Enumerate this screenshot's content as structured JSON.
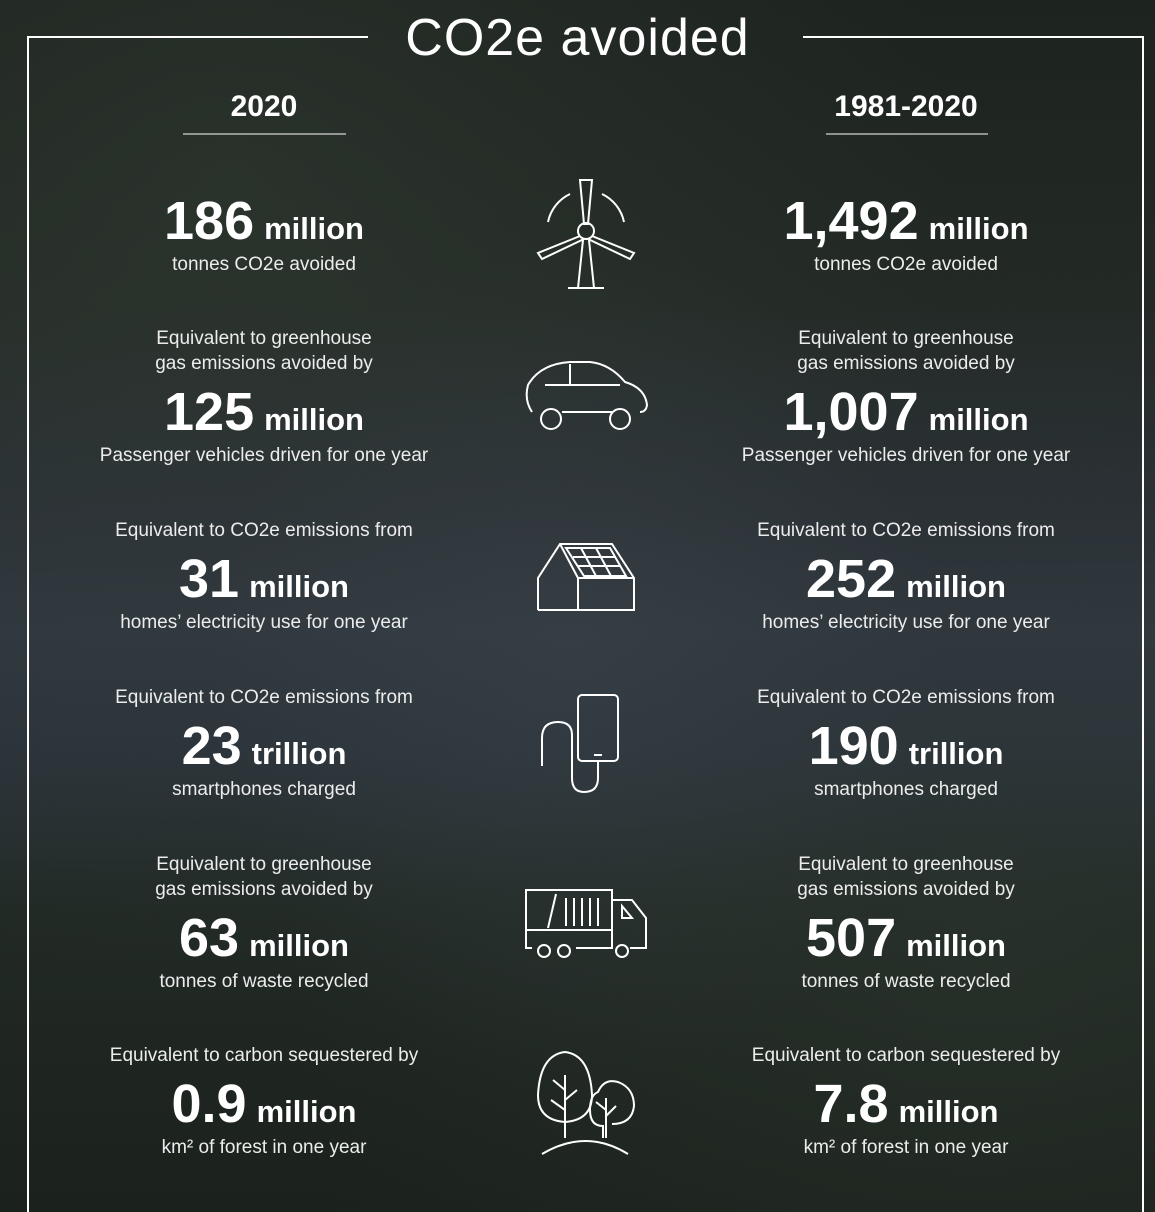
{
  "title": "CO2e avoided",
  "columns": [
    {
      "header": "2020",
      "rows": [
        {
          "pre": [],
          "number": "186",
          "unit": "million",
          "caption": "tonnes CO2e avoided"
        },
        {
          "pre": [
            "Equivalent to greenhouse",
            "gas emissions avoided by"
          ],
          "number": "125",
          "unit": "million",
          "caption": "Passenger vehicles driven for one year"
        },
        {
          "pre": [
            "Equivalent to CO2e emissions from"
          ],
          "number": "31",
          "unit": "million",
          "caption": "homes’ electricity use for one year"
        },
        {
          "pre": [
            "Equivalent to CO2e emissions from"
          ],
          "number": "23",
          "unit": "trillion",
          "caption": "smartphones charged"
        },
        {
          "pre": [
            "Equivalent to greenhouse",
            "gas emissions avoided by"
          ],
          "number": "63",
          "unit": "million",
          "caption": "tonnes of waste recycled"
        },
        {
          "pre": [
            "Equivalent to carbon sequestered by"
          ],
          "number": "0.9",
          "unit": "million",
          "caption": "km² of forest in one year"
        }
      ]
    },
    {
      "header": "1981-2020",
      "rows": [
        {
          "pre": [],
          "number": "1,492",
          "unit": "million",
          "caption": "tonnes CO2e avoided"
        },
        {
          "pre": [
            "Equivalent to greenhouse",
            "gas emissions avoided by"
          ],
          "number": "1,007",
          "unit": "million",
          "caption": "Passenger vehicles driven for one year"
        },
        {
          "pre": [
            "Equivalent to CO2e emissions from"
          ],
          "number": "252",
          "unit": "million",
          "caption": "homes’ electricity use for one year"
        },
        {
          "pre": [
            "Equivalent to CO2e emissions from"
          ],
          "number": "190",
          "unit": "trillion",
          "caption": "smartphones charged"
        },
        {
          "pre": [
            "Equivalent to greenhouse",
            "gas emissions avoided by"
          ],
          "number": "507",
          "unit": "million",
          "caption": "tonnes of waste recycled"
        },
        {
          "pre": [
            "Equivalent to carbon sequestered by"
          ],
          "number": "7.8",
          "unit": "million",
          "caption": "km² of forest in one year"
        }
      ]
    }
  ]
}
